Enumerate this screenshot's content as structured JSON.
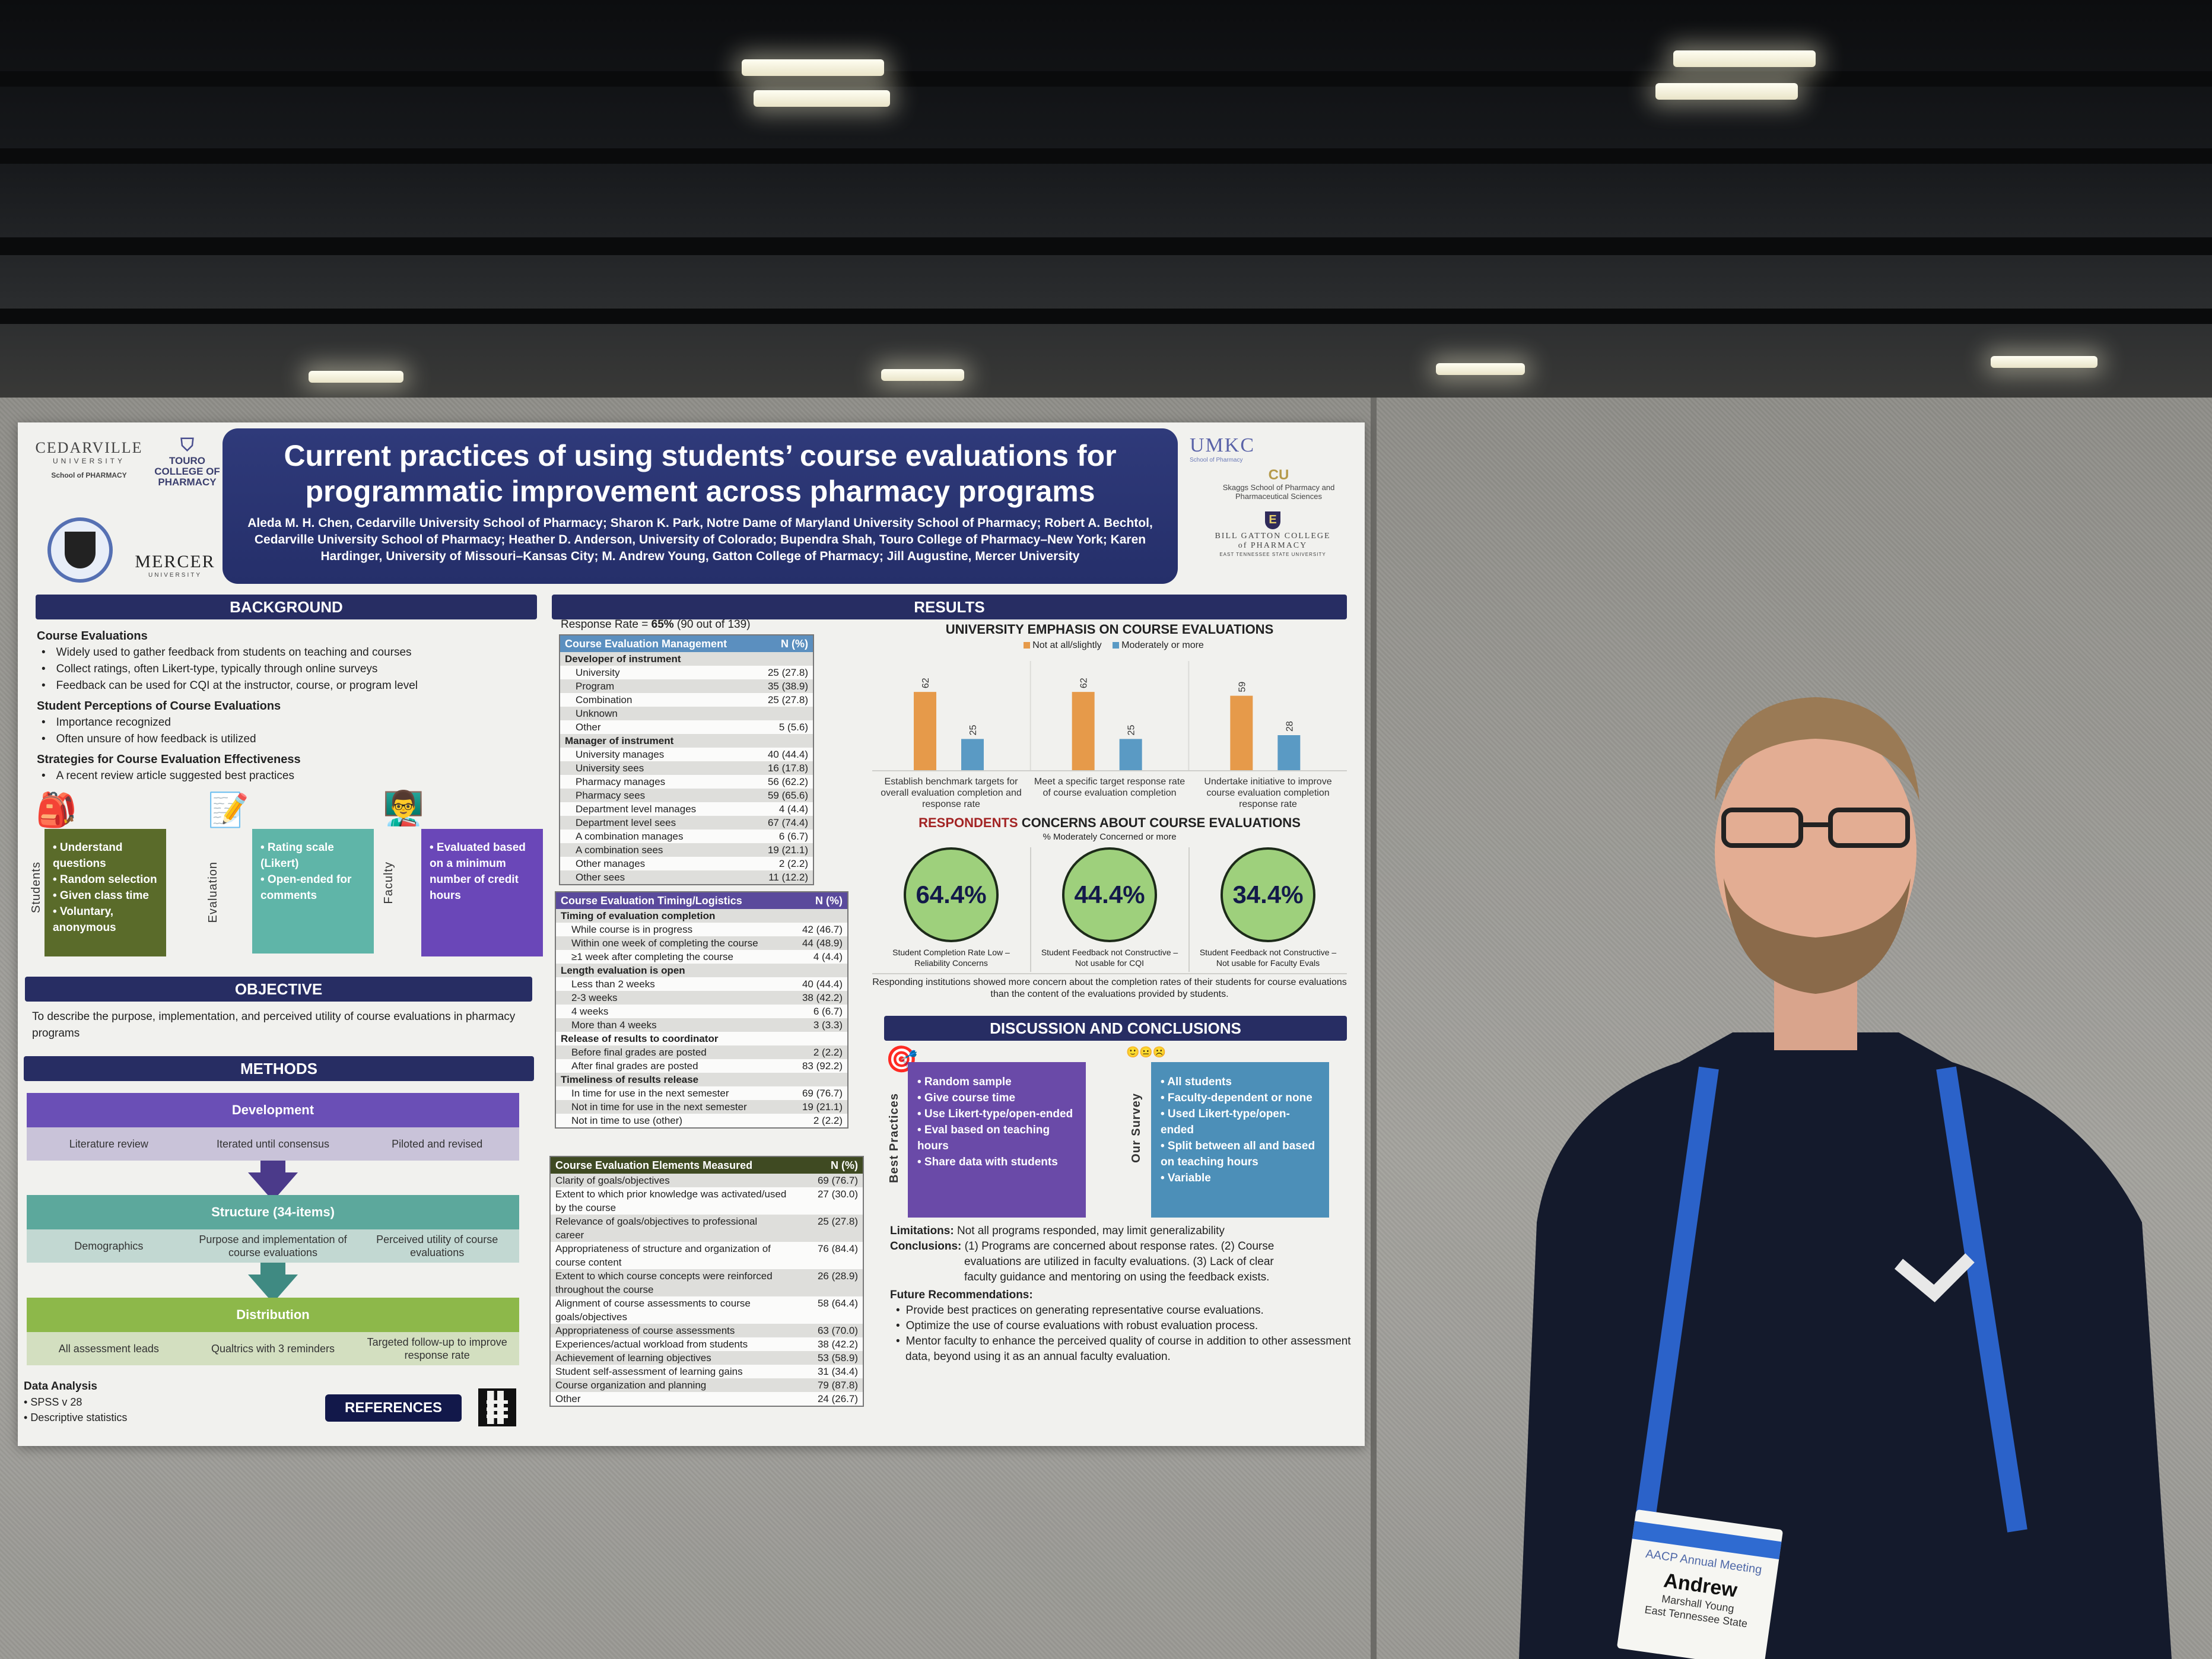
{
  "poster": {
    "title_line1": "Current practices of using students’ course evaluations for",
    "title_line2": "programmatic improvement across pharmacy programs",
    "authors": "Aleda M. H. Chen, Cedarville University School of Pharmacy; Sharon K. Park, Notre Dame of Maryland University School of Pharmacy; Robert A. Bechtol, Cedarville University School of Pharmacy; Heather D. Anderson, University of Colorado; Bupendra Shah, Touro College of Pharmacy–New York; Karen Hardinger, University of Missouri–Kansas City; M. Andrew Young, Gatton College of Pharmacy; Jill Augustine, Mercer University",
    "logos": {
      "cedarville": "CEDARVILLE",
      "cedarville_sub": "UNIVERSITY",
      "cedarville_school": "School of PHARMACY",
      "touro": "TOURO COLLEGE OF PHARMACY",
      "mercer": "MERCER",
      "mercer_sub": "UNIVERSITY",
      "umkc": "UMKC",
      "umkc_sub": "School of Pharmacy",
      "skaggs": "Skaggs School of Pharmacy and Pharmaceutical Sciences",
      "gatton": "BILL GATTON COLLEGE of PHARMACY",
      "gatton_sub": "EAST TENNESSEE STATE UNIVERSITY"
    },
    "background": {
      "header": "BACKGROUND",
      "h1": "Course Evaluations",
      "items1": [
        "Widely used to gather feedback from students on teaching and courses",
        "Collect ratings, often Likert-type, typically through online surveys",
        "Feedback can be used for CQI at the instructor, course, or program level"
      ],
      "h2": "Student Perceptions of Course Evaluations",
      "items2": [
        "Importance recognized",
        "Often unsure of how feedback is utilized"
      ],
      "h3": "Strategies for Course Evaluation Effectiveness",
      "items3": [
        "A recent review article suggested best practices"
      ],
      "boxes": [
        {
          "label": "Students",
          "lines": [
            "• Understand questions",
            "• Random selection",
            "• Given class time",
            "• Voluntary, anonymous"
          ],
          "color": "#5a6b2a"
        },
        {
          "label": "Evaluation",
          "lines": [
            "• Rating scale (Likert)",
            "• Open-ended for comments"
          ],
          "color": "#5fb5a8"
        },
        {
          "label": "Faculty",
          "lines": [
            "• Evaluated based on a minimum number of credit hours"
          ],
          "color": "#6a47b8"
        }
      ]
    },
    "objective": {
      "header": "OBJECTIVE",
      "text": "To describe the purpose, implementation, and perceived utility of course evaluations in pharmacy programs"
    },
    "methods": {
      "header": "METHODS",
      "steps": [
        {
          "title": "Development",
          "items": [
            "Literature review",
            "Iterated until consensus",
            "Piloted and revised"
          ],
          "color": "#6a4fb6",
          "sub_color": "#c9c3d9"
        },
        {
          "title": "Structure (34-items)",
          "items": [
            "Demographics",
            "Purpose and implementation of course evaluations",
            "Perceived utility of course evaluations"
          ],
          "color": "#5ca89c",
          "sub_color": "#c2d8d2"
        },
        {
          "title": "Distribution",
          "items": [
            "All assessment leads",
            "Qualtrics with 3 reminders",
            "Targeted follow-up to improve response rate"
          ],
          "color": "#8db84a",
          "sub_color": "#d3dfc0"
        }
      ],
      "data_analysis_title": "Data Analysis",
      "data_analysis": [
        "SPSS v 28",
        "Descriptive statistics"
      ],
      "references_label": "REFERENCES"
    },
    "results": {
      "header": "RESULTS",
      "response_rate_label": "Response Rate = ",
      "response_rate_value": "65%",
      "response_rate_detail": " (90 out of 139)",
      "table1": {
        "title": "Course Evaluation Management",
        "col": "N (%)",
        "color": "#5b8fbf",
        "rows": [
          {
            "label": "Developer of instrument",
            "value": "",
            "group": true
          },
          {
            "label": "University",
            "value": "25 (27.8)"
          },
          {
            "label": "Program",
            "value": "35 (38.9)"
          },
          {
            "label": "Combination",
            "value": "25 (27.8)"
          },
          {
            "label": "Unknown",
            "value": ""
          },
          {
            "label": "Other",
            "value": "5 (5.6)"
          },
          {
            "label": "Manager of instrument",
            "value": "",
            "group": true
          },
          {
            "label": "University manages",
            "value": "40 (44.4)"
          },
          {
            "label": "University sees",
            "value": "16 (17.8)"
          },
          {
            "label": "Pharmacy manages",
            "value": "56 (62.2)"
          },
          {
            "label": "Pharmacy sees",
            "value": "59 (65.6)"
          },
          {
            "label": "Department level manages",
            "value": "4 (4.4)"
          },
          {
            "label": "Department level sees",
            "value": "67 (74.4)"
          },
          {
            "label": "A combination manages",
            "value": "6 (6.7)"
          },
          {
            "label": "A combination sees",
            "value": "19 (21.1)"
          },
          {
            "label": "Other manages",
            "value": "2 (2.2)"
          },
          {
            "label": "Other sees",
            "value": "11 (12.2)"
          }
        ]
      },
      "table2": {
        "title": "Course Evaluation Timing/Logistics",
        "col": "N (%)",
        "color": "#5a4a9c",
        "rows": [
          {
            "label": "Timing of evaluation completion",
            "value": "",
            "group": true
          },
          {
            "label": "While course is in progress",
            "value": "42 (46.7)"
          },
          {
            "label": "Within one week of completing the course",
            "value": "44 (48.9)"
          },
          {
            "label": "≥1 week after completing the course",
            "value": "4 (4.4)"
          },
          {
            "label": "Length evaluation is open",
            "value": "",
            "group": true
          },
          {
            "label": "Less than 2 weeks",
            "value": "40 (44.4)"
          },
          {
            "label": "2-3 weeks",
            "value": "38 (42.2)"
          },
          {
            "label": "4 weeks",
            "value": "6 (6.7)"
          },
          {
            "label": "More than 4 weeks",
            "value": "3 (3.3)"
          },
          {
            "label": "Release of results to coordinator",
            "value": "",
            "group": true
          },
          {
            "label": "Before final grades are posted",
            "value": "2 (2.2)"
          },
          {
            "label": "After final grades are posted",
            "value": "83 (92.2)"
          },
          {
            "label": "Timeliness of results release",
            "value": "",
            "group": true
          },
          {
            "label": "In time for use in the next semester",
            "value": "69 (76.7)"
          },
          {
            "label": "Not in time for use in the next semester",
            "value": "19 (21.1)"
          },
          {
            "label": "Not in time to use (other)",
            "value": "2 (2.2)"
          }
        ]
      },
      "table3": {
        "title": "Course Evaluation Elements Measured",
        "col": "N (%)",
        "color": "#3f4a22",
        "rows": [
          {
            "label": "Clarity of goals/objectives",
            "value": "69 (76.7)"
          },
          {
            "label": "Extent to which prior knowledge was activated/used by the course",
            "value": "27 (30.0)"
          },
          {
            "label": "Relevance of goals/objectives to professional career",
            "value": "25 (27.8)"
          },
          {
            "label": "Appropriateness of structure and organization of course content",
            "value": "76 (84.4)"
          },
          {
            "label": "Extent to which course concepts were reinforced throughout the course",
            "value": "26 (28.9)"
          },
          {
            "label": "Alignment of course assessments to course goals/objectives",
            "value": "58 (64.4)"
          },
          {
            "label": "Appropriateness of course assessments",
            "value": "63 (70.0)"
          },
          {
            "label": "Experiences/actual workload from students",
            "value": "38 (42.2)"
          },
          {
            "label": "Achievement of learning objectives",
            "value": "53 (58.9)"
          },
          {
            "label": "Student self-assessment of learning gains",
            "value": "31 (34.4)"
          },
          {
            "label": "Course organization and planning",
            "value": "79 (87.8)"
          },
          {
            "label": "Other",
            "value": "24 (26.7)"
          }
        ]
      },
      "concerns": {
        "title_red": "RESPONDENTS",
        "title_rest": " CONCERNS ABOUT COURSE EVALUATIONS",
        "subtitle": "% Moderately Concerned or more",
        "items": [
          {
            "value": "64.4%",
            "label": "Student Completion Rate Low – Reliability Concerns"
          },
          {
            "value": "44.4%",
            "label": "Student Feedback not Constructive – Not usable for CQI"
          },
          {
            "value": "34.4%",
            "label": "Student Feedback not Constructive – Not usable for Faculty Evals"
          }
        ],
        "note": "Responding institutions showed more concern about the completion rates of their students for course evaluations than the content of the evaluations provided by students."
      }
    },
    "discussion": {
      "header": "DISCUSSION AND CONCLUSIONS",
      "best_label": "Best Practices",
      "best_items": [
        "• Random sample",
        "• Give course time",
        "• Use Likert-type/open-ended",
        "• Eval based on teaching hours",
        "• Share data with students"
      ],
      "survey_label": "Our Survey",
      "survey_items": [
        "• All students",
        "• Faculty-dependent or none",
        "• Used Likert-type/open-ended",
        "• Split between all and based on teaching hours",
        "• Variable"
      ],
      "limitations_label": "Limitations:",
      "limitations": " Not all programs responded, may limit generalizability",
      "conclusions_label": "Conclusions:",
      "conclusions_1": " (1) Programs are concerned about response rates. (2) Course",
      "conclusions_2": "evaluations are utilized in faculty evaluations. (3) Lack of clear",
      "conclusions_3": "faculty guidance and mentoring on using the feedback  exists.",
      "future_label": "Future Recommendations:",
      "future": [
        "Provide best practices on generating representative course evaluations.",
        "Optimize the use of course evaluations with robust evaluation process.",
        "Mentor faculty to enhance the perceived quality of course in addition to other assessment  data, beyond using it as an annual faculty evaluation."
      ]
    }
  },
  "badge": {
    "event": "AACP Annual Meeting",
    "first_name": "Andrew",
    "full_name": "Marshall Young",
    "org": "East Tennessee State"
  },
  "chart_data": {
    "type": "bar",
    "title": "UNIVERSITY EMPHASIS ON COURSE EVALUATIONS",
    "categories": [
      "Establish benchmark targets for overall evaluation completion and response rate",
      "Meet a specific target response rate of course evaluation completion",
      "Undertake initiative to improve course evaluation completion response rate"
    ],
    "series": [
      {
        "name": "Not at all/slightly",
        "values": [
          62,
          62,
          59
        ],
        "color": "#e69a4a"
      },
      {
        "name": "Moderately or more",
        "values": [
          25,
          25,
          28
        ],
        "color": "#5a9ac4"
      }
    ],
    "xlabel": "",
    "ylabel": "",
    "ylim": [
      0,
      70
    ],
    "legend": "top-center",
    "grid": false
  }
}
